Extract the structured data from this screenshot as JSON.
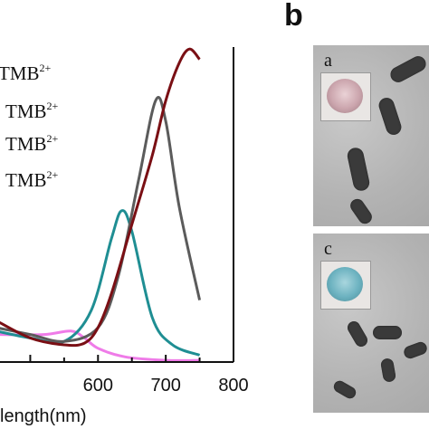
{
  "chart_data": {
    "type": "line",
    "xlabel": "length(nm)",
    "xlim": [
      450,
      800
    ],
    "xticks": [
      600,
      700,
      800
    ],
    "ylim": [
      0,
      1
    ],
    "series": [
      {
        "label_main": "TMB",
        "label_sup": "2+",
        "color": "#7a0f14",
        "x": [
          450,
          500,
          550,
          580,
          600,
          620,
          650,
          680,
          700,
          720,
          735,
          750
        ],
        "y": [
          0.12,
          0.07,
          0.05,
          0.055,
          0.1,
          0.2,
          0.4,
          0.6,
          0.76,
          0.87,
          0.91,
          0.88
        ]
      },
      {
        "label_main": "TMB",
        "label_sup": "2+",
        "color": "#5b5b5b",
        "x": [
          450,
          500,
          550,
          600,
          630,
          660,
          685,
          700,
          720,
          750
        ],
        "y": [
          0.1,
          0.08,
          0.06,
          0.1,
          0.25,
          0.53,
          0.76,
          0.7,
          0.45,
          0.18
        ]
      },
      {
        "label_main": "TMB",
        "label_sup": "2+",
        "color": "#1f8e93",
        "x": [
          450,
          500,
          550,
          590,
          620,
          635,
          650,
          680,
          710,
          750
        ],
        "y": [
          0.09,
          0.07,
          0.06,
          0.15,
          0.36,
          0.44,
          0.38,
          0.13,
          0.05,
          0.02
        ]
      },
      {
        "label_main": "TMB",
        "label_sup": "2+",
        "color": "#ef7be8",
        "x": [
          450,
          520,
          560,
          580,
          600,
          640,
          700,
          750
        ],
        "y": [
          0.08,
          0.08,
          0.09,
          0.07,
          0.04,
          0.015,
          0.005,
          0.005
        ]
      }
    ]
  },
  "panel": {
    "letter": "b"
  },
  "tem_images": [
    {
      "label": "a"
    },
    {
      "label": "c"
    }
  ]
}
